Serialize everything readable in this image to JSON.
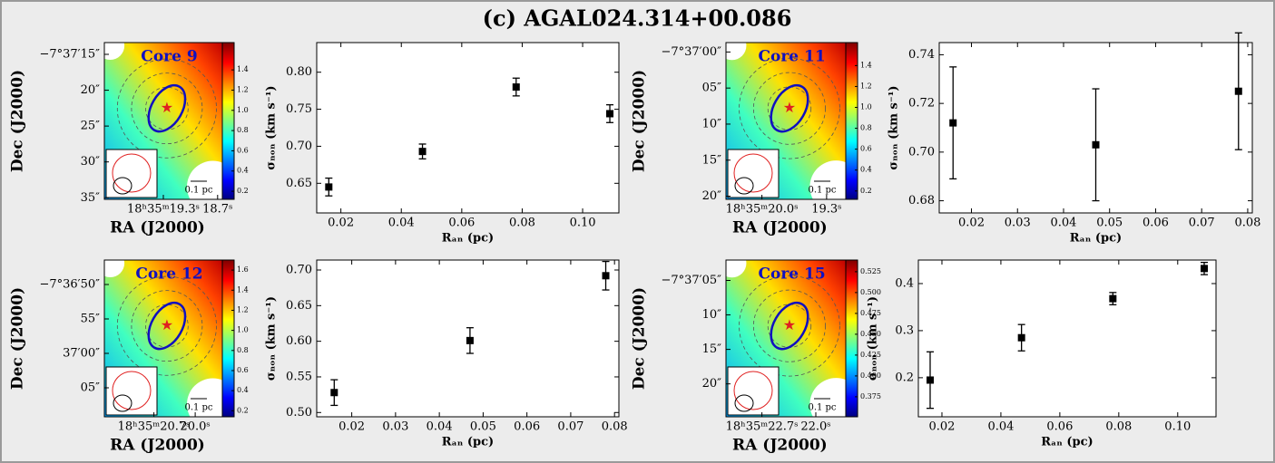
{
  "title": "(c) AGAL024.314+00.086",
  "chart_data": [
    {
      "type": "map",
      "title": "Core 9",
      "xlabel": "RA (J2000)",
      "ylabel": "Dec (J2000)",
      "xtick_labels": [
        "18ʰ35ᵐ19.3ˢ",
        "18.7ˢ"
      ],
      "ytick_labels": [
        "−7°37′15″",
        "20″",
        "25″",
        "30″",
        "35″"
      ],
      "scale_label": "0.1 pc",
      "colorbar_lim": [
        0.12,
        1.67
      ],
      "colorbar_ticks": [
        0.2,
        0.4,
        0.6,
        0.8,
        {
          "value": 1,
          "label": "1.0"
        },
        1.2,
        1.4
      ]
    },
    {
      "type": "errorbar",
      "xlabel": "Rₐₙ (pc)",
      "ylabel": "σₙₒₙ (km s⁻¹)",
      "color": "#000000",
      "x": [
        0.016,
        0.047,
        0.078,
        0.109
      ],
      "values": [
        0.645,
        0.693,
        0.78,
        0.744
      ],
      "errors": [
        0.012,
        0.01,
        0.012,
        0.012
      ],
      "xlim": [
        0.012,
        0.112
      ],
      "xticks": [
        0.02,
        0.04,
        0.06,
        0.08,
        {
          "value": 0.1,
          "label": "0.10"
        }
      ],
      "ylim": [
        0.61,
        0.84
      ],
      "yticks": [
        0.65,
        {
          "value": 0.7,
          "label": "0.70"
        },
        0.75,
        {
          "value": 0.8,
          "label": "0.80"
        }
      ]
    },
    {
      "type": "map",
      "title": "Core 11",
      "xlabel": "RA (J2000)",
      "ylabel": "Dec (J2000)",
      "xtick_labels": [
        "18ʰ35ᵐ20.0ˢ",
        "19.3ˢ"
      ],
      "ytick_labels": [
        "−7°37′00″",
        "05″",
        "10″",
        "15″",
        "20″"
      ],
      "scale_label": "0.1 pc",
      "colorbar_lim": [
        0.12,
        1.62
      ],
      "colorbar_ticks": [
        0.2,
        0.4,
        0.6,
        0.8,
        {
          "value": 1,
          "label": "1.0"
        },
        1.2,
        1.4
      ]
    },
    {
      "type": "errorbar",
      "xlabel": "Rₐₙ (pc)",
      "ylabel": "σₙₒₙ (km s⁻¹)",
      "color": "#000000",
      "x": [
        0.016,
        0.047,
        0.078
      ],
      "values": [
        0.712,
        0.703,
        0.725
      ],
      "errors": [
        0.023,
        0.023,
        0.024
      ],
      "xlim": [
        0.013,
        0.081
      ],
      "xticks": [
        0.02,
        0.03,
        0.04,
        0.05,
        0.06,
        0.07,
        0.08
      ],
      "ylim": [
        0.675,
        0.745
      ],
      "yticks": [
        0.68,
        {
          "value": 0.7,
          "label": "0.70"
        },
        0.72,
        0.74
      ]
    },
    {
      "type": "map",
      "title": "Core 12",
      "xlabel": "RA (J2000)",
      "ylabel": "Dec (J2000)",
      "xtick_labels": [
        "18ʰ35ᵐ20.7ˢ",
        "20.0ˢ"
      ],
      "ytick_labels": [
        "−7°36′50″",
        "55″",
        "37′00″",
        "05″"
      ],
      "scale_label": "0.1 pc",
      "colorbar_lim": [
        0.14,
        1.7
      ],
      "colorbar_ticks": [
        0.2,
        0.4,
        0.6,
        0.8,
        {
          "value": 1,
          "label": "1.0"
        },
        1.2,
        1.4,
        1.6
      ]
    },
    {
      "type": "errorbar",
      "xlabel": "Rₐₙ (pc)",
      "ylabel": "σₙₒₙ (km s⁻¹)",
      "color": "#000000",
      "x": [
        0.016,
        0.047,
        0.078
      ],
      "values": [
        0.528,
        0.601,
        0.692
      ],
      "errors": [
        0.018,
        0.018,
        0.02
      ],
      "xlim": [
        0.012,
        0.081
      ],
      "xticks": [
        0.02,
        0.03,
        0.04,
        0.05,
        0.06,
        0.07,
        0.08
      ],
      "ylim": [
        0.494,
        0.714
      ],
      "yticks": [
        {
          "value": 0.5,
          "label": "0.50"
        },
        0.55,
        {
          "value": 0.6,
          "label": "0.60"
        },
        0.65,
        {
          "value": 0.7,
          "label": "0.70"
        }
      ]
    },
    {
      "type": "map",
      "title": "Core 15",
      "xlabel": "RA (J2000)",
      "ylabel": "Dec (J2000)",
      "xtick_labels": [
        "18ʰ35ᵐ22.7ˢ",
        "22.0ˢ"
      ],
      "ytick_labels": [
        "−7°37′05″",
        "10″",
        "15″",
        "20″"
      ],
      "scale_label": "0.1 pc",
      "colorbar_lim": [
        0.351,
        0.539
      ],
      "colorbar_ticks": [
        0.375,
        {
          "value": 0.4,
          "label": "0.400"
        },
        0.425,
        {
          "value": 0.45,
          "label": "0.450"
        },
        0.475,
        {
          "value": 0.5,
          "label": "0.500"
        },
        0.525
      ]
    },
    {
      "type": "errorbar",
      "xlabel": "Rₐₙ (pc)",
      "ylabel": "σₙₒₙ (km s⁻¹)",
      "color": "#000000",
      "x": [
        0.016,
        0.047,
        0.078,
        0.109
      ],
      "values": [
        0.195,
        0.285,
        0.368,
        0.432
      ],
      "errors": [
        0.06,
        0.028,
        0.013,
        0.013
      ],
      "xlim": [
        0.012,
        0.113
      ],
      "xticks": [
        0.02,
        0.04,
        0.06,
        0.08,
        {
          "value": 0.1,
          "label": "0.10"
        }
      ],
      "ylim": [
        0.117,
        0.45
      ],
      "yticks": [
        0.2,
        0.3,
        0.4
      ]
    }
  ]
}
